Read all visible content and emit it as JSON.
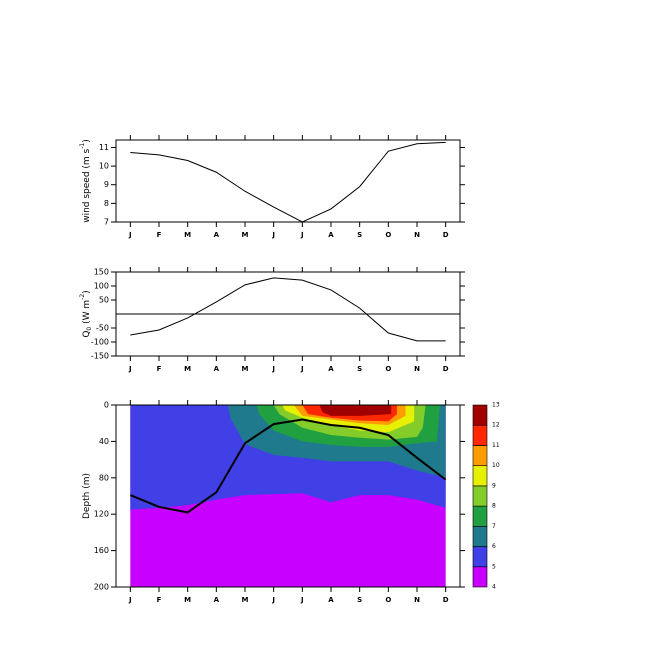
{
  "chart_data": [
    {
      "type": "line",
      "categories": [
        "J",
        "F",
        "M",
        "A",
        "M",
        "J",
        "J",
        "A",
        "S",
        "O",
        "N",
        "D"
      ],
      "values": [
        10.73,
        10.6,
        10.3,
        9.67,
        8.65,
        7.8,
        7.0,
        7.7,
        8.9,
        10.8,
        11.2,
        11.27
      ],
      "ylim": [
        7,
        11.4
      ],
      "yticks": [
        7,
        8,
        9,
        10,
        11
      ],
      "color": "#000000",
      "ylabel": [
        {
          "text": "wind speed (m s"
        },
        {
          "text": "-1",
          "shift": "super"
        },
        {
          "text": ")"
        }
      ]
    },
    {
      "type": "line",
      "categories": [
        "J",
        "F",
        "M",
        "A",
        "M",
        "J",
        "J",
        "A",
        "S",
        "O",
        "N",
        "D"
      ],
      "values": [
        -75,
        -57,
        -14,
        43,
        104,
        129,
        121,
        86,
        21,
        -68,
        -96,
        -96
      ],
      "ylim": [
        -150,
        150
      ],
      "yticks": [
        -150,
        -100,
        -50,
        50,
        100,
        150
      ],
      "refline": 0,
      "color": "#000000",
      "ylabel": [
        {
          "text": "Q"
        },
        {
          "text": "0",
          "shift": "sub"
        },
        {
          "text": " (W m"
        },
        {
          "text": "-2",
          "shift": "super"
        },
        {
          "text": ")"
        }
      ]
    },
    {
      "type": "contour",
      "categories": [
        "J",
        "F",
        "M",
        "A",
        "M",
        "J",
        "J",
        "A",
        "S",
        "O",
        "N",
        "D"
      ],
      "xlim": [
        -0.5,
        11.5
      ],
      "ylim": [
        0,
        200
      ],
      "yreverse": true,
      "yticks": [
        0,
        40,
        80,
        120,
        160,
        200
      ],
      "ylabel": [
        {
          "text": "Depth  (m)"
        }
      ],
      "levels": [
        4,
        5,
        6,
        7,
        8,
        9,
        10,
        11,
        12,
        13
      ],
      "colors": [
        "#c800ff",
        "#4040e6",
        "#1e7a8c",
        "#20a040",
        "#84cc2a",
        "#e6f000",
        "#ff9c00",
        "#ff2800",
        "#a00000"
      ],
      "regions": [
        {
          "level": 4,
          "x": [
            0,
            11,
            11,
            0
          ],
          "depth": [
            0,
            0,
            200,
            200
          ]
        },
        {
          "level": 5,
          "x": [
            0,
            11,
            11,
            10,
            9,
            8,
            7,
            6,
            5,
            4,
            3,
            2,
            1,
            0
          ],
          "depth": [
            0,
            0,
            113,
            104,
            99,
            99,
            107,
            97,
            98,
            99,
            104,
            110,
            113,
            115
          ]
        },
        {
          "level": 6,
          "x": [
            3.4,
            11,
            11,
            10,
            9,
            8,
            7,
            6,
            5,
            4,
            3.5
          ],
          "depth": [
            0,
            0,
            80,
            72,
            62,
            62,
            62,
            58,
            55,
            43,
            15
          ]
        },
        {
          "level": 7,
          "x": [
            4.4,
            10.8,
            10.7,
            10,
            9,
            8,
            7,
            6,
            5,
            4.5
          ],
          "depth": [
            0,
            0,
            40,
            42,
            46,
            46,
            44,
            40,
            28,
            10
          ]
        },
        {
          "level": 8,
          "x": [
            5,
            10.3,
            10.2,
            10,
            9,
            8,
            7,
            6,
            5.2
          ],
          "depth": [
            0,
            0,
            25,
            35,
            38,
            36,
            33,
            25,
            10
          ]
        },
        {
          "level": 9,
          "x": [
            5.3,
            9.9,
            9.9,
            9,
            8,
            7,
            6,
            5.4
          ],
          "depth": [
            0,
            0,
            18,
            30,
            28,
            22,
            14,
            6
          ]
        },
        {
          "level": 10,
          "x": [
            5.7,
            9.6,
            9.6,
            9,
            8,
            7,
            6,
            5.8
          ],
          "depth": [
            0,
            0,
            12,
            22,
            20,
            16,
            12,
            4
          ]
        },
        {
          "level": 11,
          "x": [
            6,
            9.3,
            9.3,
            9,
            8,
            7,
            6.2
          ],
          "depth": [
            0,
            0,
            10,
            18,
            17,
            14,
            10
          ]
        },
        {
          "level": 12,
          "x": [
            6.6,
            9.1,
            9.1,
            8,
            7,
            6.7
          ],
          "depth": [
            0,
            0,
            10,
            12,
            12,
            8
          ]
        }
      ],
      "values": [
        99,
        112,
        118,
        96,
        42,
        21,
        16,
        22,
        25,
        33,
        58,
        82
      ],
      "color": "#000000"
    }
  ]
}
